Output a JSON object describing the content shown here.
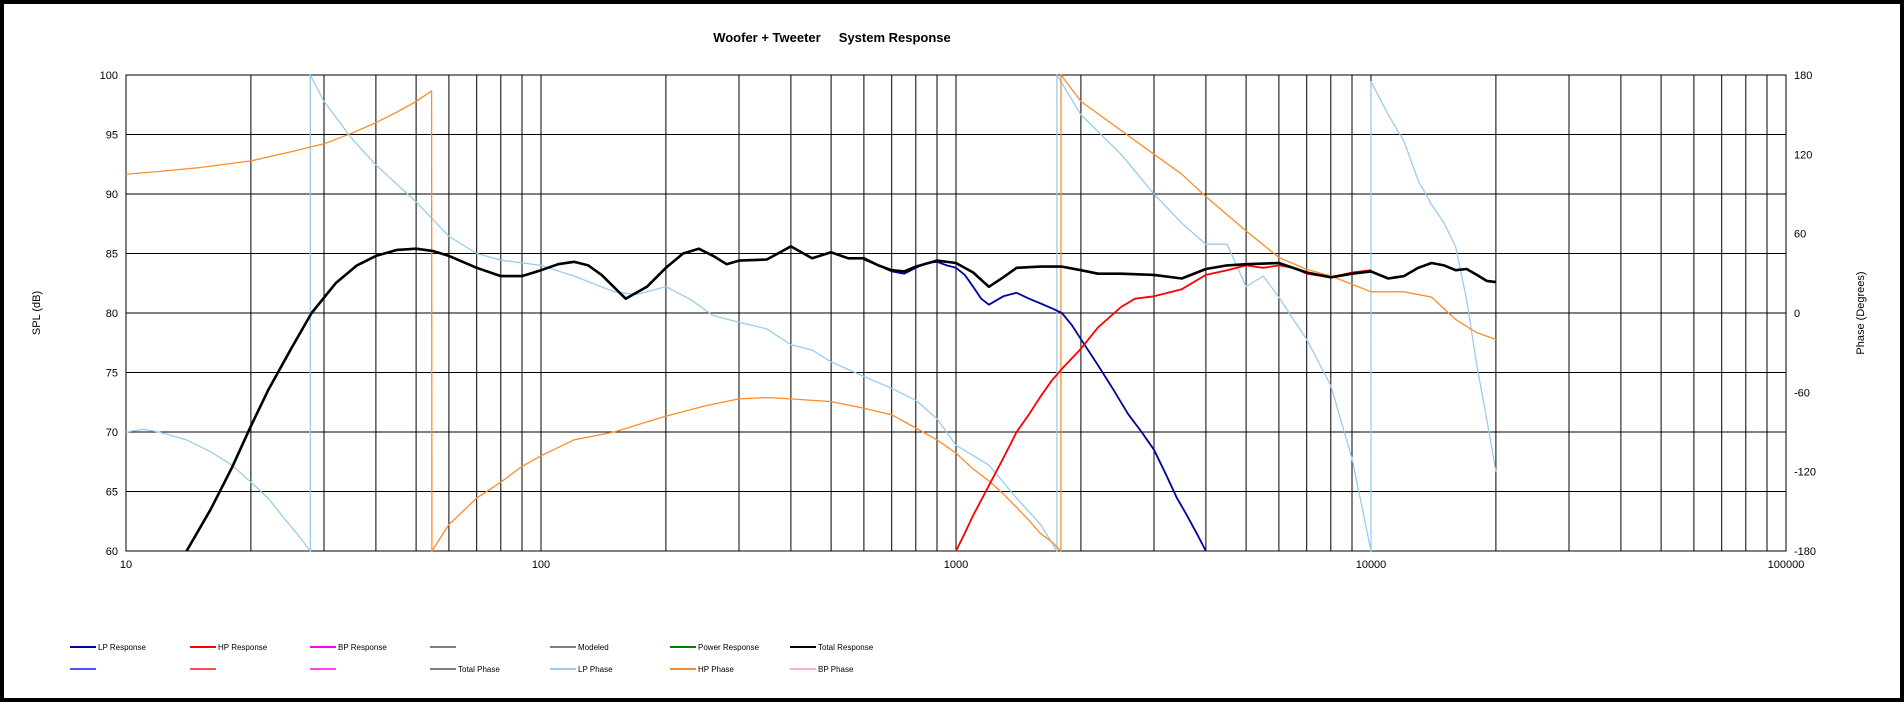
{
  "chart_data": {
    "type": "line",
    "title": "Woofer + Tweeter     System Response",
    "xlabel": "",
    "ylabel": "SPL (dB)",
    "y2label": "Phase (Degrees)",
    "xscale": "log",
    "xlim": [
      10,
      100000
    ],
    "ylim": [
      60,
      100
    ],
    "y2lim": [
      -180,
      180
    ],
    "grid": true,
    "x_ticks": [
      "10",
      "100",
      "1000",
      "10000",
      "100000"
    ],
    "y_ticks": [
      "60",
      "65",
      "70",
      "75",
      "80",
      "85",
      "90",
      "95",
      "100"
    ],
    "y2_ticks": [
      "-180",
      "-120",
      "-60",
      "0",
      "60",
      "120",
      "180"
    ],
    "legend_position": "bottom",
    "series": [
      {
        "name": "LP Response",
        "axis": "left",
        "color": "#0000a0",
        "x": [
          600,
          650,
          700,
          750,
          800,
          850,
          900,
          950,
          1000,
          1050,
          1100,
          1150,
          1200,
          1300,
          1400,
          1500,
          1600,
          1700,
          1800,
          1900,
          2000,
          2200,
          2400,
          2600,
          2800,
          3000,
          3200,
          3400,
          3600,
          3800,
          4000
        ],
        "y": [
          84.5,
          84.0,
          83.5,
          83.3,
          83.8,
          84.2,
          84.3,
          84.0,
          83.8,
          83.2,
          82.2,
          81.2,
          80.7,
          81.4,
          81.7,
          81.2,
          80.8,
          80.4,
          80.0,
          79.0,
          77.8,
          75.6,
          73.5,
          71.5,
          70.0,
          68.5,
          66.5,
          64.5,
          63.0,
          61.5,
          60.0
        ]
      },
      {
        "name": "HP Response",
        "axis": "left",
        "color": "#ff0000",
        "x": [
          1000,
          1050,
          1100,
          1200,
          1300,
          1400,
          1500,
          1600,
          1700,
          1800,
          2000,
          2200,
          2500,
          2700,
          3000,
          3500,
          4000,
          4500,
          5000,
          5500,
          6000,
          6500,
          7000,
          8000,
          9000,
          10000
        ],
        "y": [
          60.0,
          61.5,
          63.0,
          65.5,
          67.8,
          70.0,
          71.5,
          73.0,
          74.3,
          75.3,
          77.0,
          78.8,
          80.5,
          81.2,
          81.4,
          82.0,
          83.2,
          83.6,
          84.0,
          83.8,
          84.0,
          83.8,
          83.3,
          83.0,
          83.4,
          83.6
        ]
      },
      {
        "name": "Total Response",
        "axis": "left",
        "color": "#000000",
        "x": [
          14,
          16,
          18,
          20,
          22,
          25,
          28,
          32,
          36,
          40,
          45,
          50,
          55,
          60,
          70,
          80,
          90,
          100,
          110,
          120,
          130,
          140,
          160,
          180,
          200,
          220,
          240,
          260,
          280,
          300,
          350,
          400,
          450,
          500,
          550,
          600,
          650,
          700,
          750,
          800,
          900,
          1000,
          1100,
          1200,
          1300,
          1400,
          1600,
          1800,
          2000,
          2200,
          2500,
          3000,
          3500,
          4000,
          4500,
          5000,
          6000,
          7000,
          8000,
          9000,
          10000,
          11000,
          12000,
          13000,
          14000,
          15000,
          16000,
          17000,
          18000,
          19000,
          20000
        ],
        "y": [
          60.0,
          63.5,
          67.0,
          70.5,
          73.5,
          77.0,
          80.0,
          82.5,
          84.0,
          84.8,
          85.3,
          85.4,
          85.2,
          84.8,
          83.8,
          83.1,
          83.1,
          83.6,
          84.1,
          84.3,
          84.0,
          83.2,
          81.2,
          82.2,
          83.8,
          85.0,
          85.4,
          84.8,
          84.1,
          84.4,
          84.5,
          85.6,
          84.6,
          85.1,
          84.6,
          84.6,
          84.0,
          83.6,
          83.5,
          83.9,
          84.4,
          84.2,
          83.4,
          82.2,
          83.0,
          83.8,
          83.9,
          83.9,
          83.6,
          83.3,
          83.3,
          83.2,
          82.9,
          83.7,
          84.0,
          84.1,
          84.2,
          83.4,
          83.0,
          83.3,
          83.5,
          82.9,
          83.1,
          83.8,
          84.2,
          84.0,
          83.6,
          83.7,
          83.2,
          82.7,
          82.6
        ]
      },
      {
        "name": "LP Phase",
        "axis": "right",
        "color": "#99ccee",
        "x": [
          10,
          11,
          12,
          14,
          16,
          18,
          20,
          22,
          24,
          26,
          27.8,
          27.81,
          30,
          35,
          40,
          50,
          60,
          70,
          80,
          100,
          120,
          150,
          170,
          200,
          230,
          260,
          300,
          350,
          400,
          450,
          500,
          600,
          700,
          800,
          900,
          1000,
          1200,
          1400,
          1600,
          1750,
          1750.5,
          2000,
          2500,
          3000,
          3500,
          4000,
          4500,
          5000,
          5500,
          6000,
          6500,
          7000,
          8000,
          9000,
          10000,
          10001,
          11000,
          12000,
          13000,
          14000,
          15000,
          16000,
          17000,
          18000,
          19000,
          20000
        ],
        "y": [
          -90,
          -88,
          -90,
          -96,
          -105,
          -115,
          -128,
          -140,
          -155,
          -168,
          -180,
          180,
          160,
          132,
          112,
          84,
          58,
          45,
          40,
          36,
          28,
          16,
          14,
          20,
          10,
          -2,
          -7,
          -12,
          -24,
          -28,
          -37,
          -48,
          -57,
          -66,
          -80,
          -100,
          -115,
          -140,
          -160,
          -180,
          180,
          150,
          120,
          90,
          68,
          52,
          52,
          20,
          28,
          12,
          -5,
          -20,
          -55,
          -110,
          -180,
          175,
          150,
          130,
          100,
          82,
          68,
          50,
          10,
          -40,
          -80,
          -120
        ]
      },
      {
        "name": "HP Phase",
        "axis": "right",
        "color": "#ff8c28",
        "x": [
          10,
          12,
          15,
          20,
          25,
          30,
          35,
          40,
          45,
          50,
          54.5,
          54.6,
          60,
          70,
          80,
          90,
          100,
          120,
          150,
          200,
          250,
          300,
          350,
          400,
          500,
          600,
          700,
          800,
          900,
          1000,
          1100,
          1200,
          1300,
          1400,
          1500,
          1600,
          1700,
          1790,
          1790.5,
          2000,
          2500,
          3000,
          3500,
          4000,
          5000,
          6000,
          7000,
          8000,
          10000,
          12000,
          14000,
          16000,
          18000,
          20000
        ],
        "y": [
          105,
          107,
          110,
          115,
          122,
          128,
          136,
          144,
          152,
          160,
          168,
          -180,
          -160,
          -140,
          -128,
          -116,
          -108,
          -96,
          -90,
          -78,
          -70,
          -65,
          -64,
          -65,
          -67,
          -72,
          -77,
          -87,
          -96,
          -106,
          -118,
          -127,
          -137,
          -147,
          -157,
          -167,
          -173,
          -180,
          180,
          160,
          138,
          120,
          105,
          88,
          62,
          42,
          33,
          28,
          16,
          16,
          12,
          -5,
          -15,
          -20
        ]
      }
    ],
    "legend_rows": [
      [
        "LP Response",
        "HP Response",
        "BP Response",
        "",
        "Modeled",
        "Power Response",
        "Total Response"
      ],
      [
        "",
        "",
        "",
        "Total Phase",
        "LP Phase",
        "HP Phase",
        "BP Phase"
      ]
    ],
    "legend_colors": [
      [
        "#0000a0",
        "#ff0000",
        "#ff00ff",
        "#808080",
        "#808080",
        "#008000",
        "#000000"
      ],
      [
        "#5050ff",
        "#ff5050",
        "#ff40ff",
        "#808080",
        "#99ccee",
        "#ff8c28",
        "#ffb0d8"
      ]
    ]
  }
}
